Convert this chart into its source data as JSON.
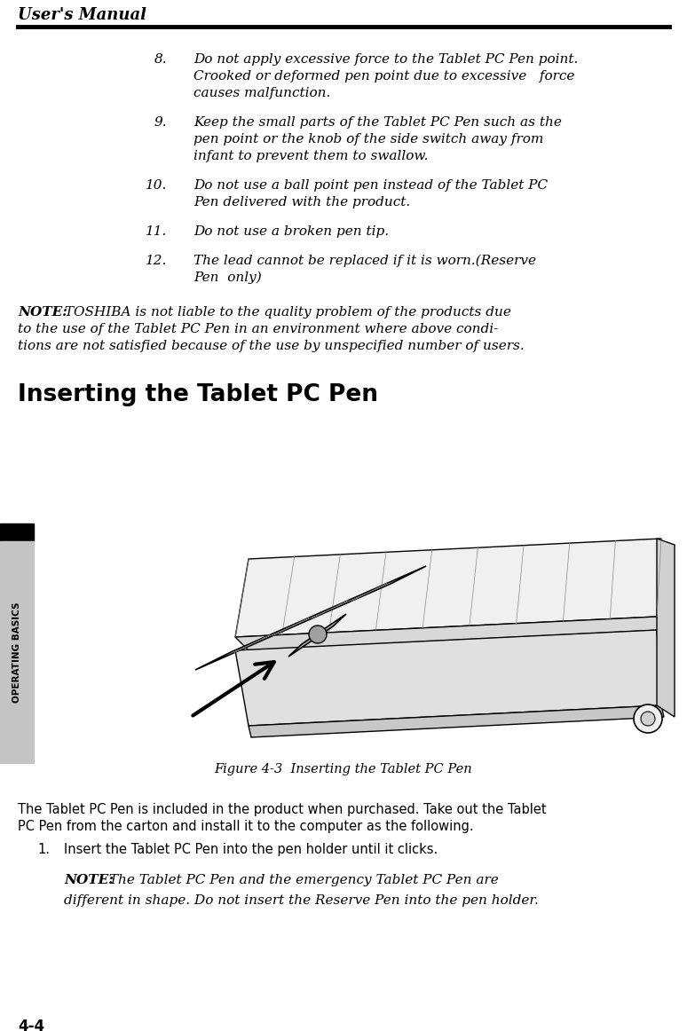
{
  "header_title": "User's Manual",
  "page_num": "4-4",
  "section_heading": "Inserting the Tablet PC Pen",
  "figure_caption": "Figure 4-3  Inserting the Tablet PC Pen",
  "bg_color": "#ffffff",
  "text_color": "#000000",
  "sidebar_bg": "#c8c8c8",
  "sidebar_header_bg": "#000000",
  "sidebar_text": "OPERATING Basics",
  "items": [
    {
      "num": "8.",
      "lines": [
        "Do not apply excessive force to the Tablet PC Pen point.",
        "Crooked or deformed pen point due to excessive   force",
        "causes malfunction."
      ]
    },
    {
      "num": "9.",
      "lines": [
        "Keep the small parts of the Tablet PC Pen such as the",
        "pen point or the knob of the side switch away from",
        "infant to prevent them to swallow."
      ]
    },
    {
      "num": "10.",
      "lines": [
        "Do not use a ball point pen instead of the Tablet PC",
        "Pen delivered with the product."
      ]
    },
    {
      "num": "11.",
      "lines": [
        "Do not use a broken pen tip."
      ]
    },
    {
      "num": "12.",
      "lines": [
        "The lead cannot be replaced if it is worn.(Reserve",
        "Pen  only)"
      ]
    }
  ],
  "note1_bold": "NOTE:",
  "note1_rest": " TOSHIBA is not liable to the quality problem of the products due\nto the use of the Tablet PC Pen in an environment where above condi-\ntions are not satisfied because of the use by unspecified number of users.",
  "body_text": "The Tablet PC Pen is included in the product when purchased. Take out the Tablet\nPC Pen from the carton and install it to the computer as the following.",
  "step1_num": "1.",
  "step1_text": "Insert the Tablet PC Pen into the pen holder until it clicks.",
  "note2_bold": "NOTE:",
  "note2_line1": " The Tablet PC Pen and the emergency Tablet PC Pen are",
  "note2_line2": "different in shape. Do not insert the Reserve Pen into the pen holder."
}
